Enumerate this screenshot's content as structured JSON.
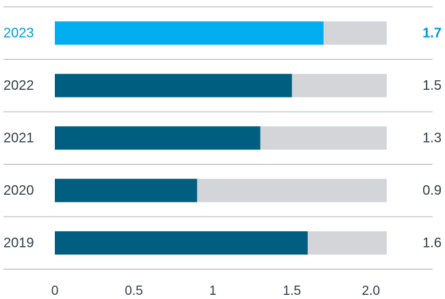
{
  "chart_data": {
    "type": "bar",
    "orientation": "horizontal",
    "categories": [
      "2023",
      "2022",
      "2021",
      "2020",
      "2019"
    ],
    "values": [
      1.7,
      1.5,
      1.3,
      0.9,
      1.6
    ],
    "value_labels": [
      "1.7",
      "1.5",
      "1.3",
      "0.9",
      "1.6"
    ],
    "highlight_category": "2023",
    "xlim": [
      0,
      2.1
    ],
    "xticks": [
      0,
      0.5,
      1,
      1.5,
      2.0
    ],
    "xtick_labels": [
      "0",
      "0.5",
      "1",
      "1.5",
      "2.0"
    ],
    "background_bar_value": 2.1,
    "grid": false,
    "title": "",
    "xlabel": "",
    "ylabel": "",
    "colors": {
      "highlight": "#00adef",
      "bar": "#005e80",
      "track": "#d3d5d8",
      "highlight_text": "#009bd6",
      "text": "#333e48",
      "separator": "#a8adb3"
    }
  }
}
